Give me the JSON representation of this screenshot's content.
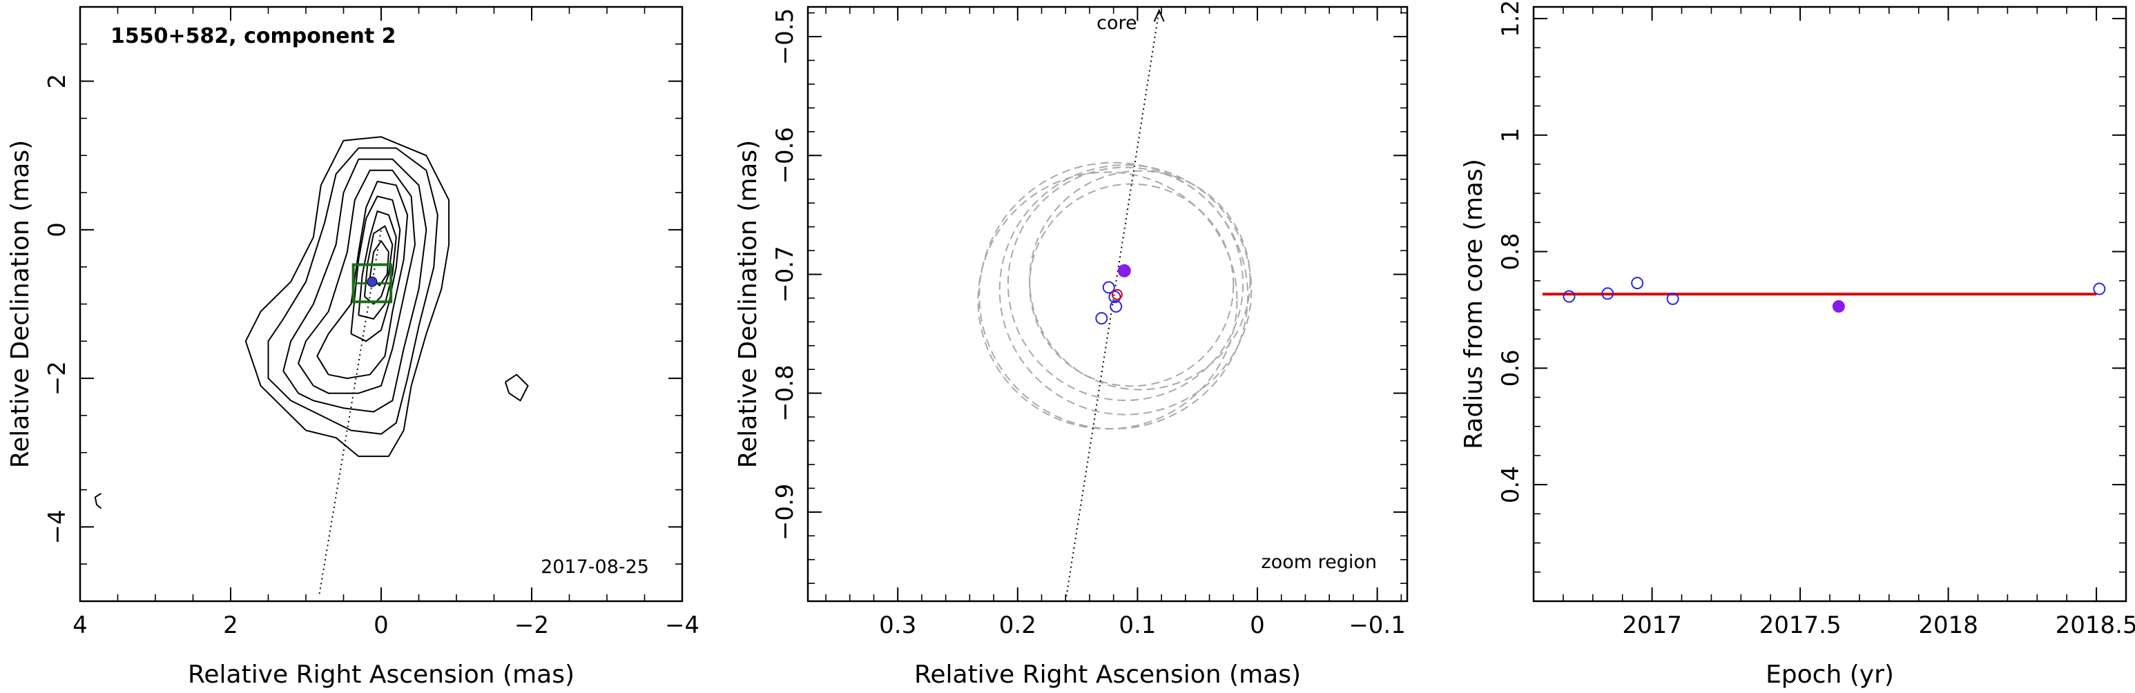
{
  "chart_data": [
    {
      "type": "contour",
      "title": "1550+582, component 2",
      "annotation": "2017-08-25",
      "xlabel": "Relative Right Ascension (mas)",
      "ylabel": "Relative Declination (mas)",
      "xlim": [
        4,
        -4
      ],
      "ylim": [
        -5,
        3
      ],
      "xticks": [
        4,
        2,
        0,
        -2,
        -4
      ],
      "yticks": [
        2,
        0,
        -2,
        -4
      ],
      "component_position": [
        0.12,
        -0.7
      ],
      "fit_box": {
        "center": [
          0.12,
          -0.72
        ],
        "half_width": 0.25
      },
      "direction_line": [
        [
          0.82,
          -4.9
        ],
        [
          0.0,
          0.0
        ]
      ],
      "contours": [
        {
          "points": [
            [
              1.3,
              -2.4
            ],
            [
              1.6,
              -2.1
            ],
            [
              1.8,
              -1.5
            ],
            [
              1.6,
              -1.1
            ],
            [
              1.2,
              -0.7
            ],
            [
              0.9,
              -0.1
            ],
            [
              0.8,
              0.6
            ],
            [
              0.5,
              1.2
            ],
            [
              0.0,
              1.25
            ],
            [
              -0.6,
              1.0
            ],
            [
              -0.9,
              0.4
            ],
            [
              -0.9,
              -0.2
            ],
            [
              -0.8,
              -0.8
            ],
            [
              -0.6,
              -1.4
            ],
            [
              -0.4,
              -2.1
            ],
            [
              -0.3,
              -2.7
            ],
            [
              -0.1,
              -3.05
            ],
            [
              0.3,
              -3.05
            ],
            [
              0.6,
              -2.8
            ],
            [
              1.0,
              -2.7
            ],
            [
              1.3,
              -2.4
            ]
          ]
        },
        {
          "points": [
            [
              1.2,
              -2.3
            ],
            [
              1.5,
              -2.0
            ],
            [
              1.5,
              -1.5
            ],
            [
              1.3,
              -1.2
            ],
            [
              1.0,
              -0.7
            ],
            [
              0.75,
              0.1
            ],
            [
              0.6,
              0.75
            ],
            [
              0.3,
              1.1
            ],
            [
              -0.2,
              1.1
            ],
            [
              -0.6,
              0.8
            ],
            [
              -0.75,
              0.2
            ],
            [
              -0.7,
              -0.5
            ],
            [
              -0.5,
              -1.3
            ],
            [
              -0.35,
              -2.0
            ],
            [
              -0.2,
              -2.6
            ],
            [
              0.0,
              -2.75
            ],
            [
              0.4,
              -2.7
            ],
            [
              0.8,
              -2.5
            ],
            [
              1.2,
              -2.3
            ]
          ]
        },
        {
          "points": [
            [
              1.1,
              -2.2
            ],
            [
              1.3,
              -1.9
            ],
            [
              1.2,
              -1.5
            ],
            [
              0.9,
              -1.0
            ],
            [
              0.6,
              -0.2
            ],
            [
              0.5,
              0.5
            ],
            [
              0.3,
              0.95
            ],
            [
              -0.15,
              0.95
            ],
            [
              -0.5,
              0.6
            ],
            [
              -0.6,
              0.0
            ],
            [
              -0.5,
              -0.8
            ],
            [
              -0.3,
              -1.6
            ],
            [
              -0.15,
              -2.3
            ],
            [
              0.1,
              -2.45
            ],
            [
              0.5,
              -2.4
            ],
            [
              0.9,
              -2.3
            ],
            [
              1.1,
              -2.2
            ]
          ]
        },
        {
          "points": [
            [
              0.9,
              -2.1
            ],
            [
              1.1,
              -1.8
            ],
            [
              1.0,
              -1.5
            ],
            [
              0.7,
              -1.1
            ],
            [
              0.45,
              -0.3
            ],
            [
              0.35,
              0.4
            ],
            [
              0.15,
              0.8
            ],
            [
              -0.15,
              0.8
            ],
            [
              -0.4,
              0.45
            ],
            [
              -0.45,
              -0.2
            ],
            [
              -0.3,
              -0.9
            ],
            [
              -0.15,
              -1.6
            ],
            [
              0.0,
              -2.1
            ],
            [
              0.3,
              -2.2
            ],
            [
              0.7,
              -2.2
            ],
            [
              0.9,
              -2.1
            ]
          ]
        },
        {
          "points": [
            [
              0.7,
              -1.95
            ],
            [
              0.85,
              -1.7
            ],
            [
              0.7,
              -1.4
            ],
            [
              0.4,
              -1.0
            ],
            [
              0.3,
              -0.3
            ],
            [
              0.2,
              0.3
            ],
            [
              0.05,
              0.65
            ],
            [
              -0.2,
              0.6
            ],
            [
              -0.35,
              0.2
            ],
            [
              -0.3,
              -0.4
            ],
            [
              -0.15,
              -1.1
            ],
            [
              -0.05,
              -1.7
            ],
            [
              0.15,
              -1.95
            ],
            [
              0.45,
              -2.0
            ],
            [
              0.7,
              -1.95
            ]
          ]
        },
        {
          "points": [
            [
              0.4,
              -1.4
            ],
            [
              0.35,
              -0.9
            ],
            [
              0.3,
              -0.4
            ],
            [
              0.2,
              0.15
            ],
            [
              0.05,
              0.45
            ],
            [
              -0.15,
              0.4
            ],
            [
              -0.25,
              0.0
            ],
            [
              -0.2,
              -0.5
            ],
            [
              -0.1,
              -1.0
            ],
            [
              0.0,
              -1.35
            ],
            [
              0.2,
              -1.5
            ],
            [
              0.4,
              -1.4
            ]
          ]
        },
        {
          "points": [
            [
              0.3,
              -1.15
            ],
            [
              0.25,
              -0.6
            ],
            [
              0.15,
              -0.1
            ],
            [
              0.05,
              0.25
            ],
            [
              -0.1,
              0.2
            ],
            [
              -0.2,
              -0.1
            ],
            [
              -0.15,
              -0.6
            ],
            [
              -0.05,
              -1.0
            ],
            [
              0.1,
              -1.2
            ],
            [
              0.3,
              -1.15
            ]
          ]
        },
        {
          "points": [
            [
              0.22,
              -0.9
            ],
            [
              0.18,
              -0.45
            ],
            [
              0.1,
              -0.05
            ],
            [
              -0.05,
              0.05
            ],
            [
              -0.15,
              -0.2
            ],
            [
              -0.1,
              -0.6
            ],
            [
              0.0,
              -0.9
            ],
            [
              0.1,
              -1.0
            ],
            [
              0.22,
              -0.9
            ]
          ]
        },
        {
          "points": [
            [
              0.15,
              -0.65
            ],
            [
              0.1,
              -0.3
            ],
            [
              0.0,
              -0.15
            ],
            [
              -0.1,
              -0.3
            ],
            [
              -0.08,
              -0.6
            ],
            [
              0.02,
              -0.75
            ],
            [
              0.15,
              -0.65
            ]
          ]
        },
        {
          "points": [
            [
              -1.65,
              -2.05
            ],
            [
              -1.8,
              -1.95
            ],
            [
              -1.95,
              -2.1
            ],
            [
              -1.85,
              -2.3
            ],
            [
              -1.7,
              -2.2
            ],
            [
              -1.65,
              -2.05
            ]
          ]
        },
        {
          "points": [
            [
              3.72,
              -3.55
            ],
            [
              3.8,
              -3.6
            ],
            [
              3.78,
              -3.7
            ],
            [
              3.72,
              -3.75
            ]
          ]
        }
      ]
    },
    {
      "type": "scatter",
      "annotation_top": "core",
      "annotation": "zoom region",
      "xlabel": "Relative Right Ascension (mas)",
      "ylabel": "Relative Declination (mas)",
      "xlim": [
        0.375,
        -0.125
      ],
      "ylim": [
        -0.975,
        -0.475
      ],
      "xticks": [
        0.3,
        0.2,
        0.1,
        0,
        -0.1
      ],
      "xtick_labels": [
        "0.3",
        "0.2",
        "0.1",
        "0",
        "−0.1"
      ],
      "yticks": [
        -0.5,
        -0.6,
        -0.7,
        -0.8,
        -0.9
      ],
      "ytick_labels": [
        "−0.5",
        "−0.6",
        "−0.7",
        "−0.8",
        "−0.9"
      ],
      "direction_line": [
        [
          0.16,
          -0.975
        ],
        [
          0.082,
          -0.478
        ]
      ],
      "points_open": [
        [
          0.13,
          -0.737
        ],
        [
          0.124,
          -0.711
        ],
        [
          0.119,
          -0.719
        ],
        [
          0.118,
          -0.727
        ]
      ],
      "point_filled": [
        0.111,
        -0.697
      ],
      "point_mean": [
        0.117,
        -0.717
      ],
      "circles": [
        {
          "center": [
            0.11,
            -0.713
          ],
          "r": 0.105
        },
        {
          "center": [
            0.125,
            -0.722
          ],
          "r": 0.108
        },
        {
          "center": [
            0.11,
            -0.708
          ],
          "r": 0.098
        },
        {
          "center": [
            0.098,
            -0.705
          ],
          "r": 0.092
        },
        {
          "center": [
            0.12,
            -0.718
          ],
          "r": 0.112
        },
        {
          "center": [
            0.105,
            -0.709
          ],
          "r": 0.085
        }
      ],
      "colors": {
        "open": "#2727e8",
        "filled": "#8a1be6",
        "mean": "#e00000",
        "circles": "#a9a9a9"
      }
    },
    {
      "type": "scatter",
      "xlabel": "Epoch (yr)",
      "ylabel": "Radius from core (mas)",
      "xlim": [
        2016.6,
        2018.6
      ],
      "ylim": [
        0.2,
        1.22
      ],
      "xticks": [
        2017,
        2017.5,
        2018,
        2018.5
      ],
      "xtick_labels": [
        "2017",
        "2017.5",
        "2018",
        "2018.5"
      ],
      "yticks": [
        0.4,
        0.6,
        0.8,
        1.0,
        1.2
      ],
      "ytick_labels": [
        "0.4",
        "0.6",
        "0.8",
        "1",
        "1.2"
      ],
      "points_open": [
        [
          2016.72,
          0.723
        ],
        [
          2016.85,
          0.728
        ],
        [
          2016.95,
          0.746
        ],
        [
          2017.07,
          0.719
        ],
        [
          2018.51,
          0.736
        ]
      ],
      "point_filled": [
        2017.63,
        0.706
      ],
      "fit_line": {
        "x": [
          2016.63,
          2018.5
        ],
        "y": [
          0.727,
          0.727
        ]
      },
      "colors": {
        "open": "#2727e8",
        "filled": "#8a1be6",
        "fit": "#e00000"
      }
    }
  ]
}
